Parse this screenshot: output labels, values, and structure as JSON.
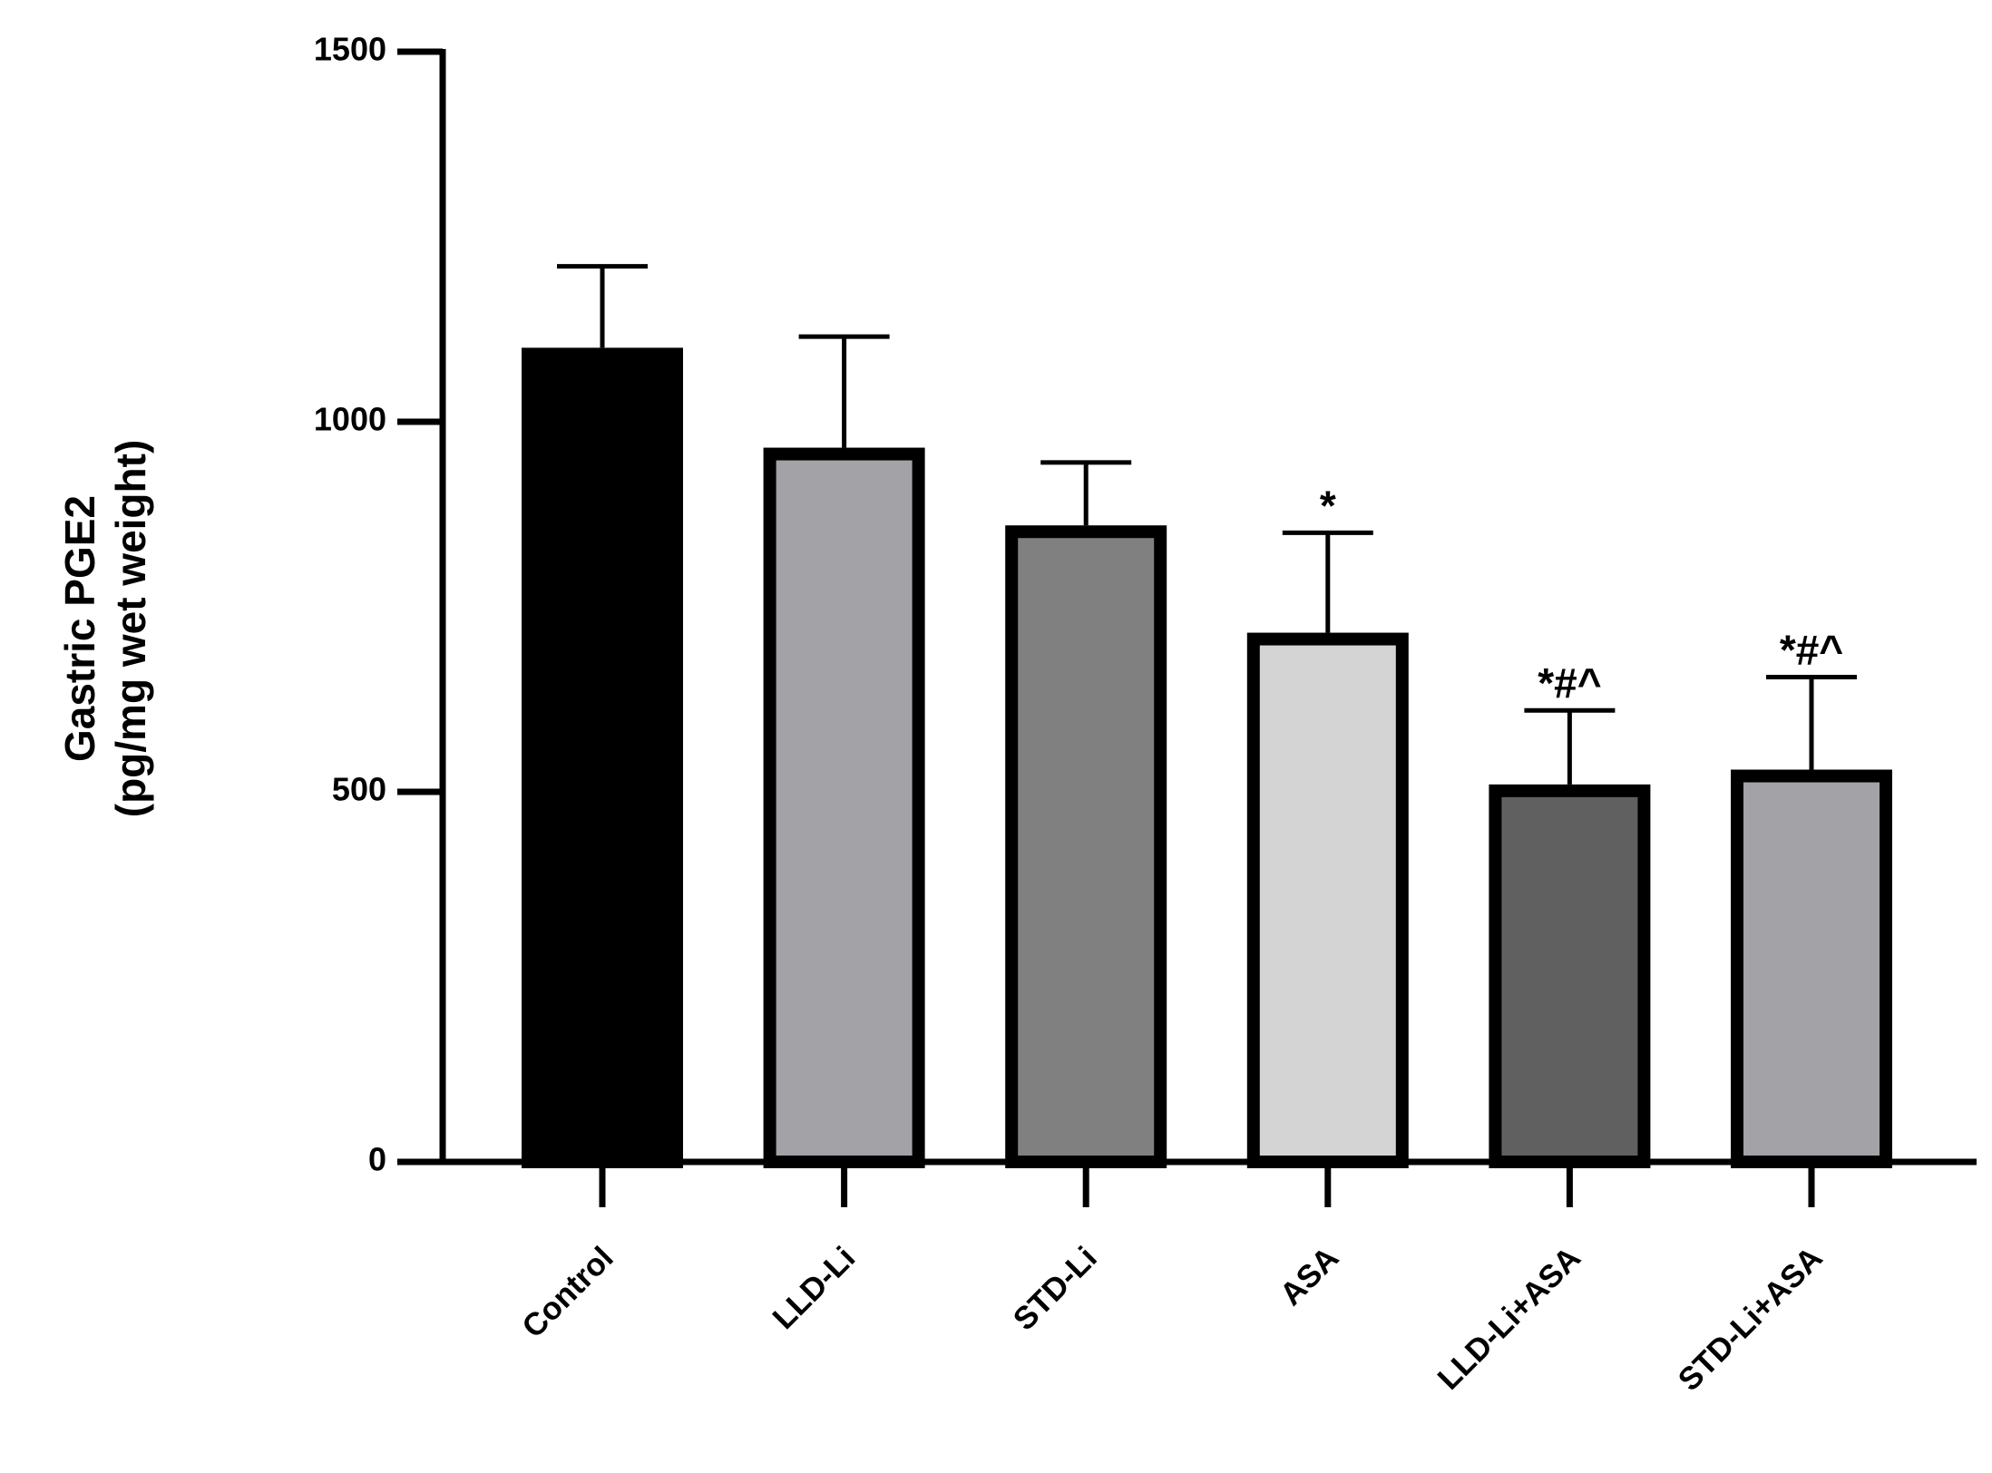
{
  "chart_data": {
    "type": "bar",
    "y_label": [
      "Gastric PGE2",
      "(pg/mg wet weight)"
    ],
    "categories": [
      "Control",
      "LLD-Li",
      "STD-Li",
      "ASA",
      "LLD-Li+ASA",
      "STD-Li+ASA"
    ],
    "values": [
      1100,
      965,
      860,
      715,
      510,
      530
    ],
    "errors": [
      110,
      150,
      85,
      135,
      100,
      125
    ],
    "colors": [
      "#000000",
      "#a3a2a6",
      "#808080",
      "#d4d4d4",
      "#606060",
      "#a3a2a6"
    ],
    "annotations": [
      null,
      null,
      null,
      "*",
      "*#^",
      "*#^"
    ],
    "ylim": [
      0,
      1500
    ],
    "yticks": [
      0,
      500,
      1000,
      1500
    ],
    "grid": false
  }
}
